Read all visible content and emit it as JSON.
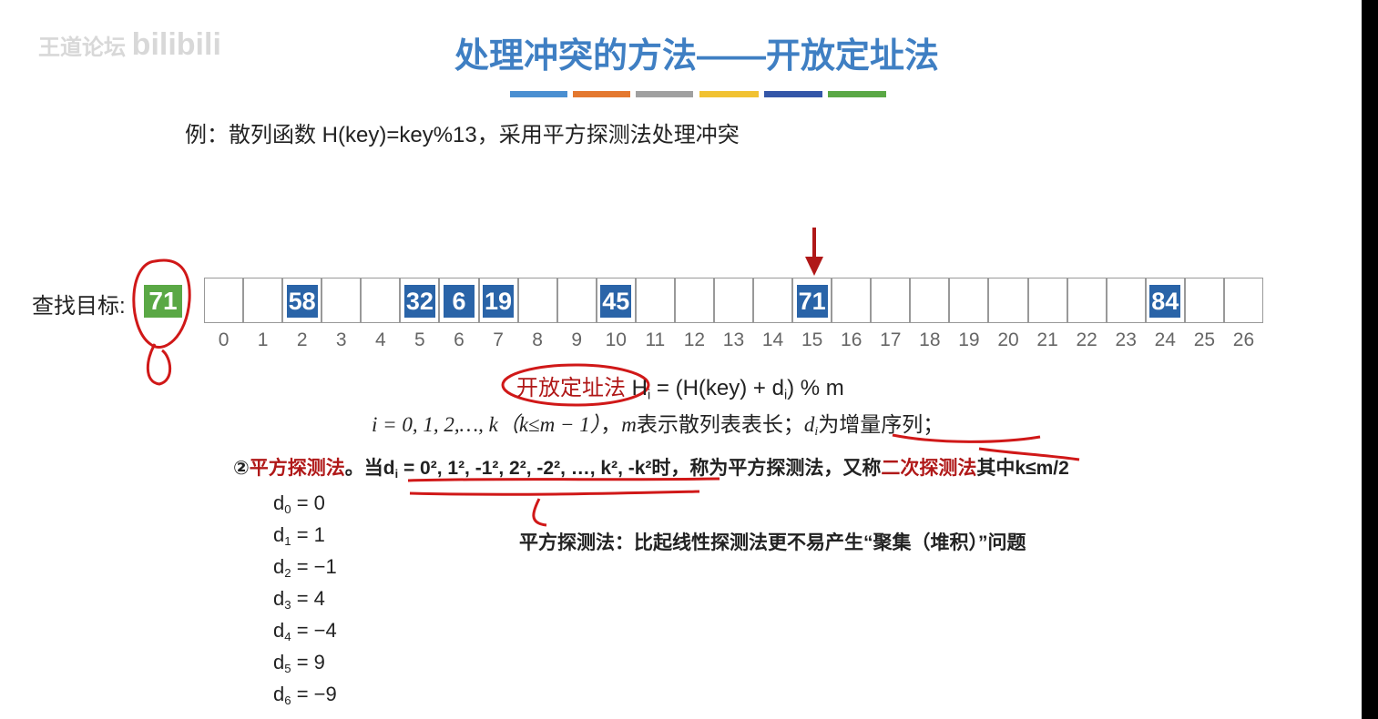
{
  "watermark": {
    "text": "王道论坛",
    "logo": "bilibili"
  },
  "title": "处理冲突的方法——开放定址法",
  "example": "例：散列函数 H(key)=key%13，采用平方探测法处理冲突",
  "search": {
    "label": "查找目标:",
    "target": 71
  },
  "table": {
    "slots": [
      null,
      null,
      58,
      null,
      null,
      32,
      6,
      19,
      null,
      null,
      45,
      null,
      null,
      null,
      null,
      71,
      null,
      null,
      null,
      null,
      null,
      null,
      null,
      null,
      84,
      null,
      null
    ],
    "indices": [
      0,
      1,
      2,
      3,
      4,
      5,
      6,
      7,
      8,
      9,
      10,
      11,
      12,
      13,
      14,
      15,
      16,
      17,
      18,
      19,
      20,
      21,
      22,
      23,
      24,
      25,
      26
    ]
  },
  "formula": {
    "method": "开放定址法",
    "lhs": "H",
    "lhs_sub": "i",
    "rhs_a": " = (H(key) + d",
    "rhs_sub": "i",
    "rhs_b": ") % m"
  },
  "definition": {
    "range": "i = 0, 1, 2,…, k（k≤m − 1）",
    "sep": "，",
    "m": "m",
    "m_text": "表示散列表表长；",
    "d": "d",
    "d_sub": "i",
    "d_text": "为增量序列；"
  },
  "rule": {
    "num": "②",
    "name": "平方探测法",
    "when": "。当",
    "d": "d",
    "d_sub": "i",
    "seq": " = 0², 1², -1², 2², -2², …, k², -k²",
    "mid": "时，称为平方探测法，又称",
    "alias": "二次探测法",
    "tail": "其中k≤m/2"
  },
  "note": "平方探测法：比起线性探测法更不易产生“聚集（堆积）”问题",
  "increments": [
    {
      "d": "d",
      "sub": "0",
      "eq": " = 0"
    },
    {
      "d": "d",
      "sub": "1",
      "eq": " = 1"
    },
    {
      "d": "d",
      "sub": "2",
      "eq": " = −1"
    },
    {
      "d": "d",
      "sub": "3",
      "eq": " = 4"
    },
    {
      "d": "d",
      "sub": "4",
      "eq": " = −4"
    },
    {
      "d": "d",
      "sub": "5",
      "eq": " = 9"
    },
    {
      "d": "d",
      "sub": "6",
      "eq": " = −9"
    }
  ]
}
